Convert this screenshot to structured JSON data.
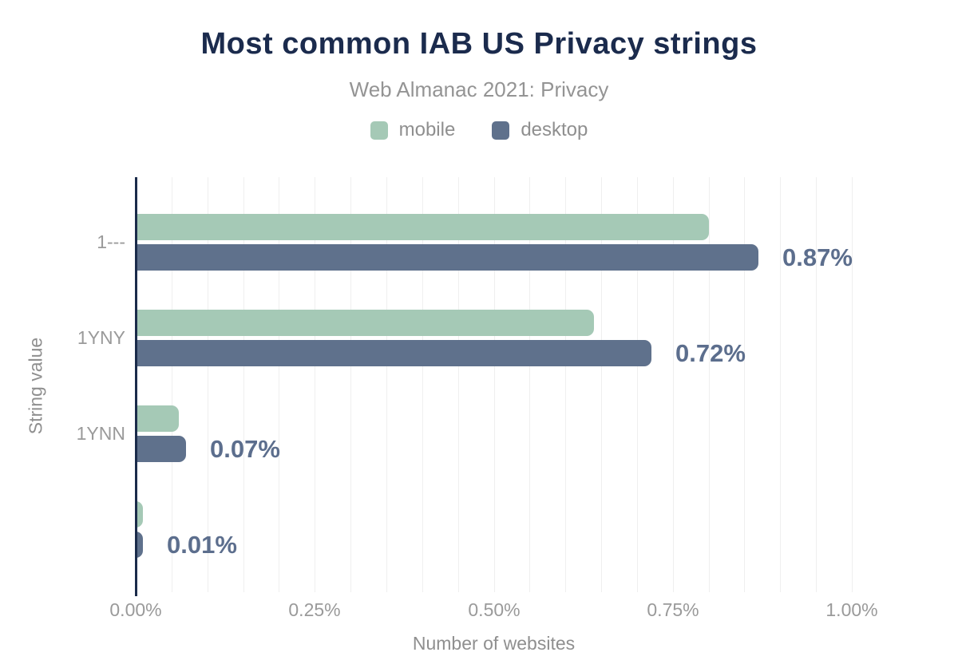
{
  "chart_data": {
    "type": "bar",
    "orientation": "horizontal",
    "title": "Most common IAB US Privacy strings",
    "subtitle": "Web Almanac 2021: Privacy",
    "xlabel": "Number of websites",
    "ylabel": "String value",
    "categories": [
      "1---",
      "1YNY",
      "1YNN",
      ""
    ],
    "series": [
      {
        "name": "mobile",
        "color": "#a5c9b6",
        "values": [
          0.8,
          0.64,
          0.06,
          0.01
        ]
      },
      {
        "name": "desktop",
        "color": "#5f718c",
        "values": [
          0.87,
          0.72,
          0.07,
          0.01
        ],
        "data_labels": [
          "0.87%",
          "0.72%",
          "0.07%",
          "0.01%"
        ]
      }
    ],
    "xlim": [
      0,
      1.0
    ],
    "x_ticks": [
      {
        "value": 0.0,
        "label": "0.00%"
      },
      {
        "value": 0.25,
        "label": "0.25%"
      },
      {
        "value": 0.5,
        "label": "0.50%"
      },
      {
        "value": 0.75,
        "label": "0.75%"
      },
      {
        "value": 1.0,
        "label": "1.00%"
      }
    ],
    "grid": true,
    "grid_step": 0.05,
    "legend_position": "top",
    "legend_entries": [
      "mobile",
      "desktop"
    ]
  },
  "colors": {
    "title": "#1b2b4d",
    "subtitle": "#949494",
    "legend_text": "#8f8f8f",
    "axis_text": "#9a9a9a",
    "axis_title_text": "#8f8f8f",
    "data_label": "#5c6e8d",
    "axis_line": "#1b2b4a",
    "gridline": "#efefef",
    "background": "#ffffff",
    "mobile": "#a5c9b6",
    "desktop": "#5f718c"
  }
}
